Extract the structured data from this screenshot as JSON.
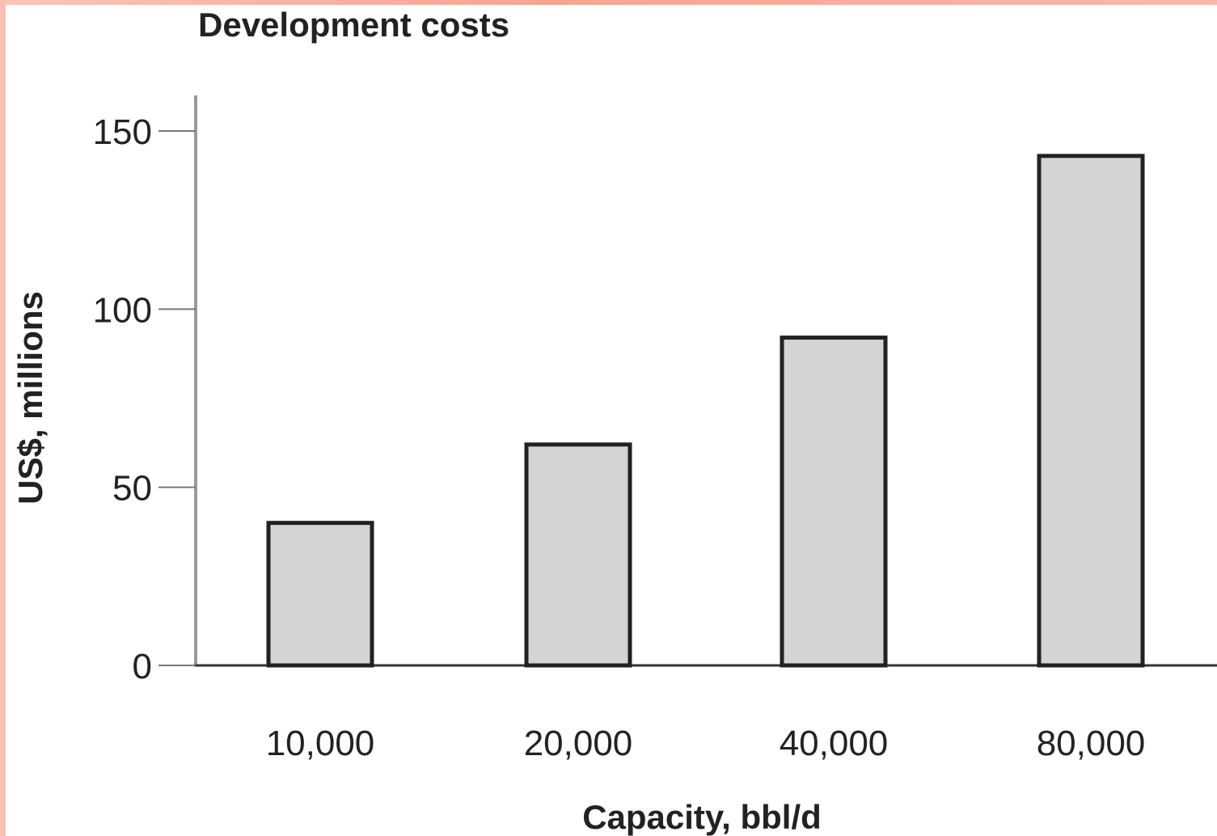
{
  "chart_data": {
    "type": "bar",
    "title": "Development costs",
    "xlabel": "Capacity, bbl/d",
    "ylabel": "US$, millions",
    "categories": [
      "10,000",
      "20,000",
      "40,000",
      "80,000"
    ],
    "values": [
      40,
      62,
      92,
      143
    ],
    "ylim": [
      0,
      160
    ],
    "yticks": [
      0,
      50,
      100,
      150
    ],
    "grid": false,
    "legend": "none",
    "colors": {
      "bar_fill": "#d3d4d6",
      "bar_stroke": "#222222",
      "axis": "#333333",
      "text": "#222222"
    }
  }
}
